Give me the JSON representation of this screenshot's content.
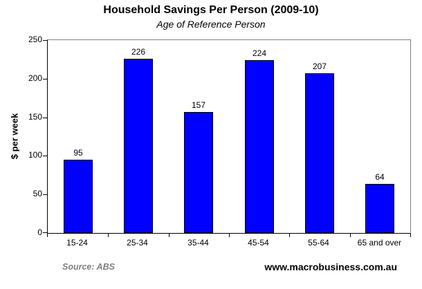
{
  "title": "Household Savings Per Person (2009-10)",
  "subtitle": "Age of Reference Person",
  "footer": {
    "source": "Source: ABS",
    "website": "www.macrobusiness.com.au"
  },
  "colors": {
    "bar_fill": "#0000ff",
    "bar_border": "#000000",
    "frame_gray": "#808080",
    "axis_black": "#000000",
    "source_text": "#808080",
    "background": "#ffffff"
  },
  "chart_data": {
    "type": "bar",
    "categories": [
      "15-24",
      "25-34",
      "35-44",
      "45-54",
      "55-64",
      "65 and over"
    ],
    "values": [
      95,
      226,
      157,
      224,
      207,
      64
    ],
    "title": "Household Savings Per Person (2009-10)",
    "subtitle": "Age of Reference Person",
    "xlabel": "",
    "ylabel": "$ per week",
    "ylim": [
      0,
      250
    ],
    "yticks": [
      0,
      50,
      100,
      150,
      200,
      250
    ],
    "grid": false,
    "legend": false,
    "bar_value_labels_shown": true
  }
}
